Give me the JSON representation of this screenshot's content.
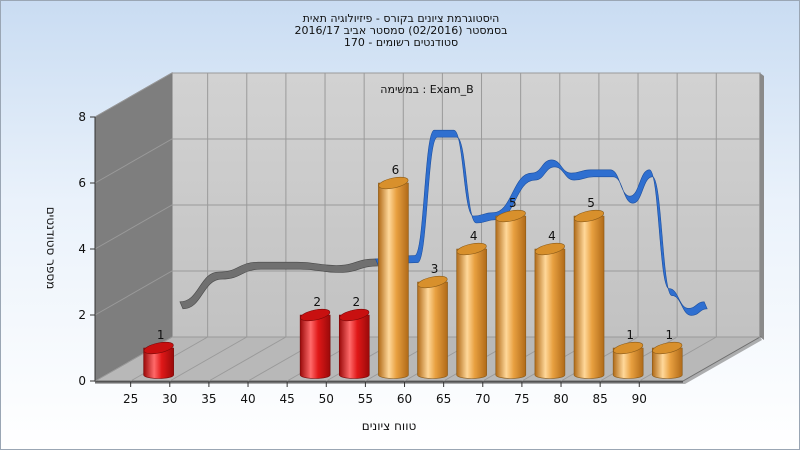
{
  "chart_data": {
    "type": "bar",
    "title_lines": [
      "היסטוגרמת ציונים בקורס - פיזיולוגיה תאית",
      "בסמסטר  (02/2016)  סמסטר אביב 2016/17",
      "סטודנטים רשומים - 170"
    ],
    "annotation": "במשימה : Exam_B",
    "xlabel": "טווח ציונים",
    "ylabel": "מספר סטודנטים",
    "x_ticks": [
      "25",
      "30",
      "35",
      "40",
      "45",
      "50",
      "55",
      "60",
      "65",
      "70",
      "75",
      "80",
      "85",
      "90"
    ],
    "y_ticks": [
      "0",
      "2",
      "4",
      "6",
      "8"
    ],
    "ylim": [
      0,
      8
    ],
    "bars": [
      {
        "x": 25,
        "value": 1,
        "label": "1",
        "color": "#e01818"
      },
      {
        "x": 45,
        "value": 2,
        "label": "2",
        "color": "#e01818"
      },
      {
        "x": 50,
        "value": 2,
        "label": "2",
        "color": "#e01818"
      },
      {
        "x": 55,
        "value": 6,
        "label": "6",
        "color": "#e8a040"
      },
      {
        "x": 60,
        "value": 3,
        "label": "3",
        "color": "#e8a040"
      },
      {
        "x": 65,
        "value": 4,
        "label": "4",
        "color": "#e8a040"
      },
      {
        "x": 70,
        "value": 5,
        "label": "5",
        "color": "#e8a040"
      },
      {
        "x": 75,
        "value": 4,
        "label": "4",
        "color": "#e8a040"
      },
      {
        "x": 80,
        "value": 5,
        "label": "5",
        "color": "#e8a040"
      },
      {
        "x": 85,
        "value": 1,
        "label": "1",
        "color": "#e8a040"
      },
      {
        "x": 90,
        "value": 1,
        "label": "1",
        "color": "#e8a040"
      }
    ],
    "ribbon": {
      "gray_color": "#707070",
      "blue_color": "#2f6fd0",
      "gray_points": [
        [
          25,
          1.6
        ],
        [
          30,
          2.5
        ],
        [
          35,
          2.8
        ],
        [
          40,
          2.8
        ],
        [
          45,
          2.7
        ],
        [
          50,
          2.9
        ]
      ],
      "blue_points": [
        [
          50,
          2.9
        ],
        [
          55,
          3.0
        ],
        [
          57.5,
          6.8
        ],
        [
          60,
          6.8
        ],
        [
          62.5,
          4.2
        ],
        [
          65,
          4.3
        ],
        [
          70,
          5.5
        ],
        [
          72.5,
          5.9
        ],
        [
          75,
          5.5
        ],
        [
          77.5,
          5.6
        ],
        [
          80,
          5.6
        ],
        [
          82.5,
          4.8
        ],
        [
          85,
          5.6
        ],
        [
          87.5,
          2.0
        ],
        [
          90,
          1.4
        ],
        [
          92,
          1.6
        ]
      ]
    },
    "colors": {
      "red": "#e01818",
      "orange": "#e8a040",
      "blue": "#2f6fd0",
      "wall_left": "#7e7e7e",
      "wall_back": "#c8c8c8",
      "floor": "#b8b8b8"
    }
  }
}
